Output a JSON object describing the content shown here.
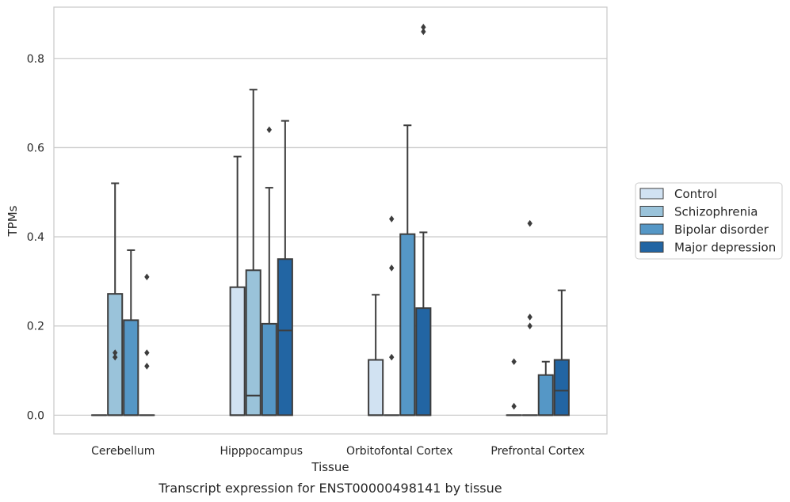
{
  "chart_data": {
    "type": "box",
    "caption": "Transcript expression for ENST00000498141 by tissue",
    "xlabel": "Tissue",
    "ylabel": "TPMs",
    "ylim": [
      -0.042,
      0.915
    ],
    "yticks": [
      0.0,
      0.2,
      0.4,
      0.6,
      0.8
    ],
    "ytick_labels": [
      "0.0",
      "0.2",
      "0.4",
      "0.6",
      "0.8"
    ],
    "grid": "horizontal",
    "legend_position": "right",
    "categories": [
      "Cerebellum",
      "Hipppocampus",
      "Orbitofontal Cortex",
      "Prefrontal Cortex"
    ],
    "series": [
      {
        "name": "Control",
        "color": "#d1e2f2",
        "boxes": [
          {
            "q1": 0,
            "median": 0,
            "q3": 0,
            "whisker_low": 0,
            "whisker_high": 0,
            "fliers": []
          },
          {
            "q1": 0,
            "median": 0,
            "q3": 0.287,
            "whisker_low": 0,
            "whisker_high": 0.58,
            "fliers": []
          },
          {
            "q1": 0,
            "median": 0,
            "q3": 0.124,
            "whisker_low": 0,
            "whisker_high": 0.27,
            "fliers": []
          },
          {
            "q1": 0,
            "median": 0,
            "q3": 0,
            "whisker_low": 0,
            "whisker_high": 0,
            "fliers": [
              0.02,
              0.12
            ]
          }
        ]
      },
      {
        "name": "Schizophrenia",
        "color": "#9ac3da",
        "boxes": [
          {
            "q1": 0,
            "median": 0,
            "q3": 0.272,
            "whisker_low": 0,
            "whisker_high": 0.52,
            "fliers": [
              0.13,
              0.14
            ]
          },
          {
            "q1": 0,
            "median": 0.044,
            "q3": 0.325,
            "whisker_low": 0,
            "whisker_high": 0.73,
            "fliers": []
          },
          {
            "q1": 0,
            "median": 0,
            "q3": 0,
            "whisker_low": 0,
            "whisker_high": 0,
            "fliers": [
              0.13,
              0.33,
              0.44
            ]
          },
          {
            "q1": 0,
            "median": 0,
            "q3": 0,
            "whisker_low": 0,
            "whisker_high": 0,
            "fliers": [
              0.2,
              0.22,
              0.43
            ]
          }
        ]
      },
      {
        "name": "Bipolar disorder",
        "color": "#5597c6",
        "boxes": [
          {
            "q1": 0,
            "median": 0,
            "q3": 0.213,
            "whisker_low": 0,
            "whisker_high": 0.37,
            "fliers": []
          },
          {
            "q1": 0,
            "median": 0,
            "q3": 0.205,
            "whisker_low": 0,
            "whisker_high": 0.51,
            "fliers": [
              0.64
            ]
          },
          {
            "q1": 0,
            "median": 0,
            "q3": 0.406,
            "whisker_low": 0,
            "whisker_high": 0.65,
            "fliers": []
          },
          {
            "q1": 0,
            "median": 0,
            "q3": 0.09,
            "whisker_low": 0,
            "whisker_high": 0.12,
            "fliers": []
          }
        ]
      },
      {
        "name": "Major depression",
        "color": "#2265a3",
        "boxes": [
          {
            "q1": 0,
            "median": 0,
            "q3": 0,
            "whisker_low": 0,
            "whisker_high": 0,
            "fliers": [
              0.11,
              0.14,
              0.31
            ]
          },
          {
            "q1": 0,
            "median": 0.19,
            "q3": 0.35,
            "whisker_low": 0,
            "whisker_high": 0.66,
            "fliers": []
          },
          {
            "q1": 0,
            "median": 0,
            "q3": 0.24,
            "whisker_low": 0,
            "whisker_high": 0.41,
            "fliers": [
              0.86,
              0.87
            ]
          },
          {
            "q1": 0,
            "median": 0.055,
            "q3": 0.124,
            "whisker_low": 0,
            "whisker_high": 0.28,
            "fliers": []
          }
        ]
      }
    ]
  }
}
